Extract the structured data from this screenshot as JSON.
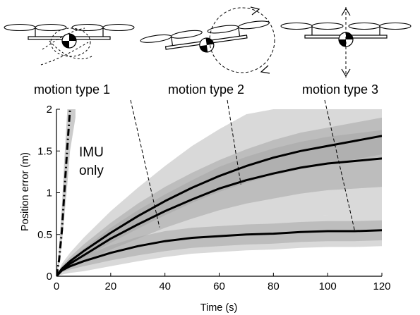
{
  "chart_data": {
    "type": "line",
    "xlabel": "Time (s)",
    "ylabel": "Position error (m)",
    "xlim": [
      0,
      120
    ],
    "ylim": [
      0,
      2
    ],
    "x_ticks": [
      "0",
      "20",
      "40",
      "60",
      "80",
      "100",
      "120"
    ],
    "y_ticks": [
      "0",
      "0.5",
      "1",
      "1.5",
      "2"
    ],
    "grid": false,
    "imu_label_line1": "IMU",
    "imu_label_line2": "only",
    "imu_only_series": {
      "style": "dash-dot",
      "x": [
        0,
        1,
        2,
        3,
        4,
        5
      ],
      "y": [
        0,
        0.2,
        0.55,
        1.05,
        1.55,
        2.0
      ],
      "band_lower": [
        0,
        0.15,
        0.4,
        0.75,
        1.1,
        1.5,
        1.9
      ],
      "band_upper": [
        0,
        0.35,
        0.85,
        1.45,
        2.0,
        2.0,
        2.0
      ],
      "band_x": [
        0,
        1,
        2,
        3,
        4,
        5,
        7
      ]
    },
    "motion_labels": [
      "motion type 1",
      "motion type 2",
      "motion type 3"
    ],
    "series": [
      {
        "x": [
          0,
          2,
          5,
          10,
          20,
          30,
          40,
          50,
          60,
          70,
          80,
          90,
          100,
          110,
          120
        ],
        "y": [
          0,
          0.08,
          0.15,
          0.25,
          0.45,
          0.62,
          0.78,
          0.92,
          1.05,
          1.15,
          1.23,
          1.3,
          1.35,
          1.38,
          1.41
        ],
        "std_inner": [
          0,
          0.03,
          0.05,
          0.08,
          0.13,
          0.17,
          0.2,
          0.23,
          0.26,
          0.28,
          0.3,
          0.31,
          0.32,
          0.33,
          0.34
        ],
        "std_outer": [
          0,
          0.06,
          0.1,
          0.15,
          0.25,
          0.32,
          0.38,
          0.43,
          0.48,
          0.52,
          0.56,
          0.59,
          0.62,
          0.65,
          0.68
        ]
      },
      {
        "x": [
          0,
          2,
          5,
          10,
          20,
          30,
          40,
          50,
          60,
          70,
          80,
          90,
          100,
          110,
          120
        ],
        "y": [
          0,
          0.09,
          0.18,
          0.3,
          0.52,
          0.72,
          0.9,
          1.06,
          1.2,
          1.32,
          1.42,
          1.5,
          1.56,
          1.62,
          1.68
        ],
        "std_inner": [
          0,
          0.03,
          0.05,
          0.08,
          0.12,
          0.15,
          0.17,
          0.18,
          0.19,
          0.2,
          0.21,
          0.22,
          0.22,
          0.22,
          0.22
        ],
        "std_outer": [
          0,
          0.06,
          0.1,
          0.16,
          0.26,
          0.34,
          0.42,
          0.5,
          0.56,
          0.62,
          0.67,
          0.72,
          0.77,
          0.82,
          0.86
        ]
      },
      {
        "x": [
          0,
          2,
          5,
          10,
          20,
          30,
          40,
          50,
          60,
          70,
          80,
          90,
          100,
          110,
          120
        ],
        "y": [
          0,
          0.07,
          0.12,
          0.18,
          0.28,
          0.36,
          0.42,
          0.46,
          0.48,
          0.5,
          0.51,
          0.53,
          0.54,
          0.54,
          0.55
        ],
        "std_inner": [
          0,
          0.02,
          0.04,
          0.06,
          0.09,
          0.11,
          0.12,
          0.12,
          0.12,
          0.12,
          0.12,
          0.12,
          0.12,
          0.12,
          0.12
        ],
        "std_outer": [
          0,
          0.05,
          0.08,
          0.12,
          0.16,
          0.18,
          0.19,
          0.19,
          0.19,
          0.19,
          0.19,
          0.19,
          0.19,
          0.19,
          0.19
        ]
      }
    ],
    "colors": {
      "line": "#000000",
      "band_outer": "#d9d9d9",
      "band_inner": "#a6a6a6",
      "imu_band": "#cccccc"
    }
  }
}
